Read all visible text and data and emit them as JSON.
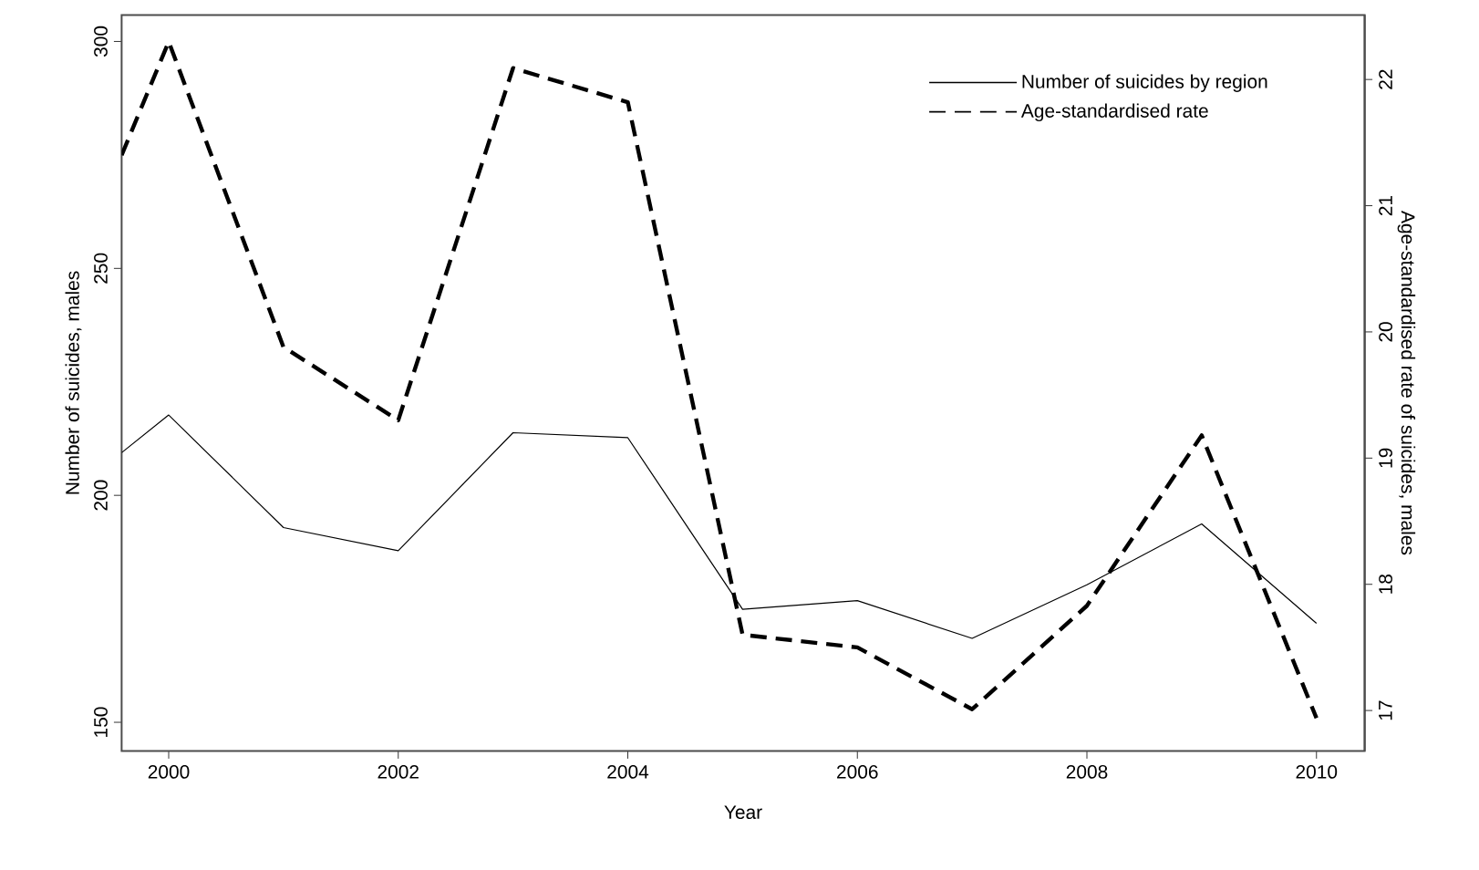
{
  "chart_data": {
    "type": "line",
    "xlabel": "Year",
    "ylabel": "Number of suicides, males",
    "y2label": "Age-standardised rate of suicides, males",
    "x": [
      1999.59,
      2000,
      2001,
      2002,
      2003,
      2004,
      2005,
      2006,
      2007,
      2008,
      2009,
      2010
    ],
    "series": [
      {
        "name": "Number of suicides by region",
        "color": "#000000",
        "line_style": "solid",
        "values": [
          209.4,
          217.7,
          192.9,
          187.8,
          213.8,
          212.7,
          174.9,
          176.8,
          168.5,
          180.3,
          193.7,
          171.8
        ]
      },
      {
        "name": "Age-standardised rate",
        "color": "#000000",
        "line_style": "dashed",
        "axis": "y2",
        "values": [
          21.4,
          22.3,
          19.88,
          19.3,
          22.09,
          21.82,
          17.6,
          17.5,
          17.01,
          17.83,
          19.18,
          16.94
        ]
      }
    ],
    "xlim": [
      1999.59,
      2010.42
    ],
    "xticks": [
      2000,
      2002,
      2004,
      2006,
      2008,
      2010
    ],
    "ylim": [
      143.7,
      305.8
    ],
    "yticks": [
      150,
      200,
      250,
      300
    ],
    "y2lim": [
      16.68,
      22.51
    ],
    "y2ticks": [
      17,
      18,
      19,
      20,
      21,
      22
    ],
    "legend": "top right",
    "marker": "none"
  }
}
